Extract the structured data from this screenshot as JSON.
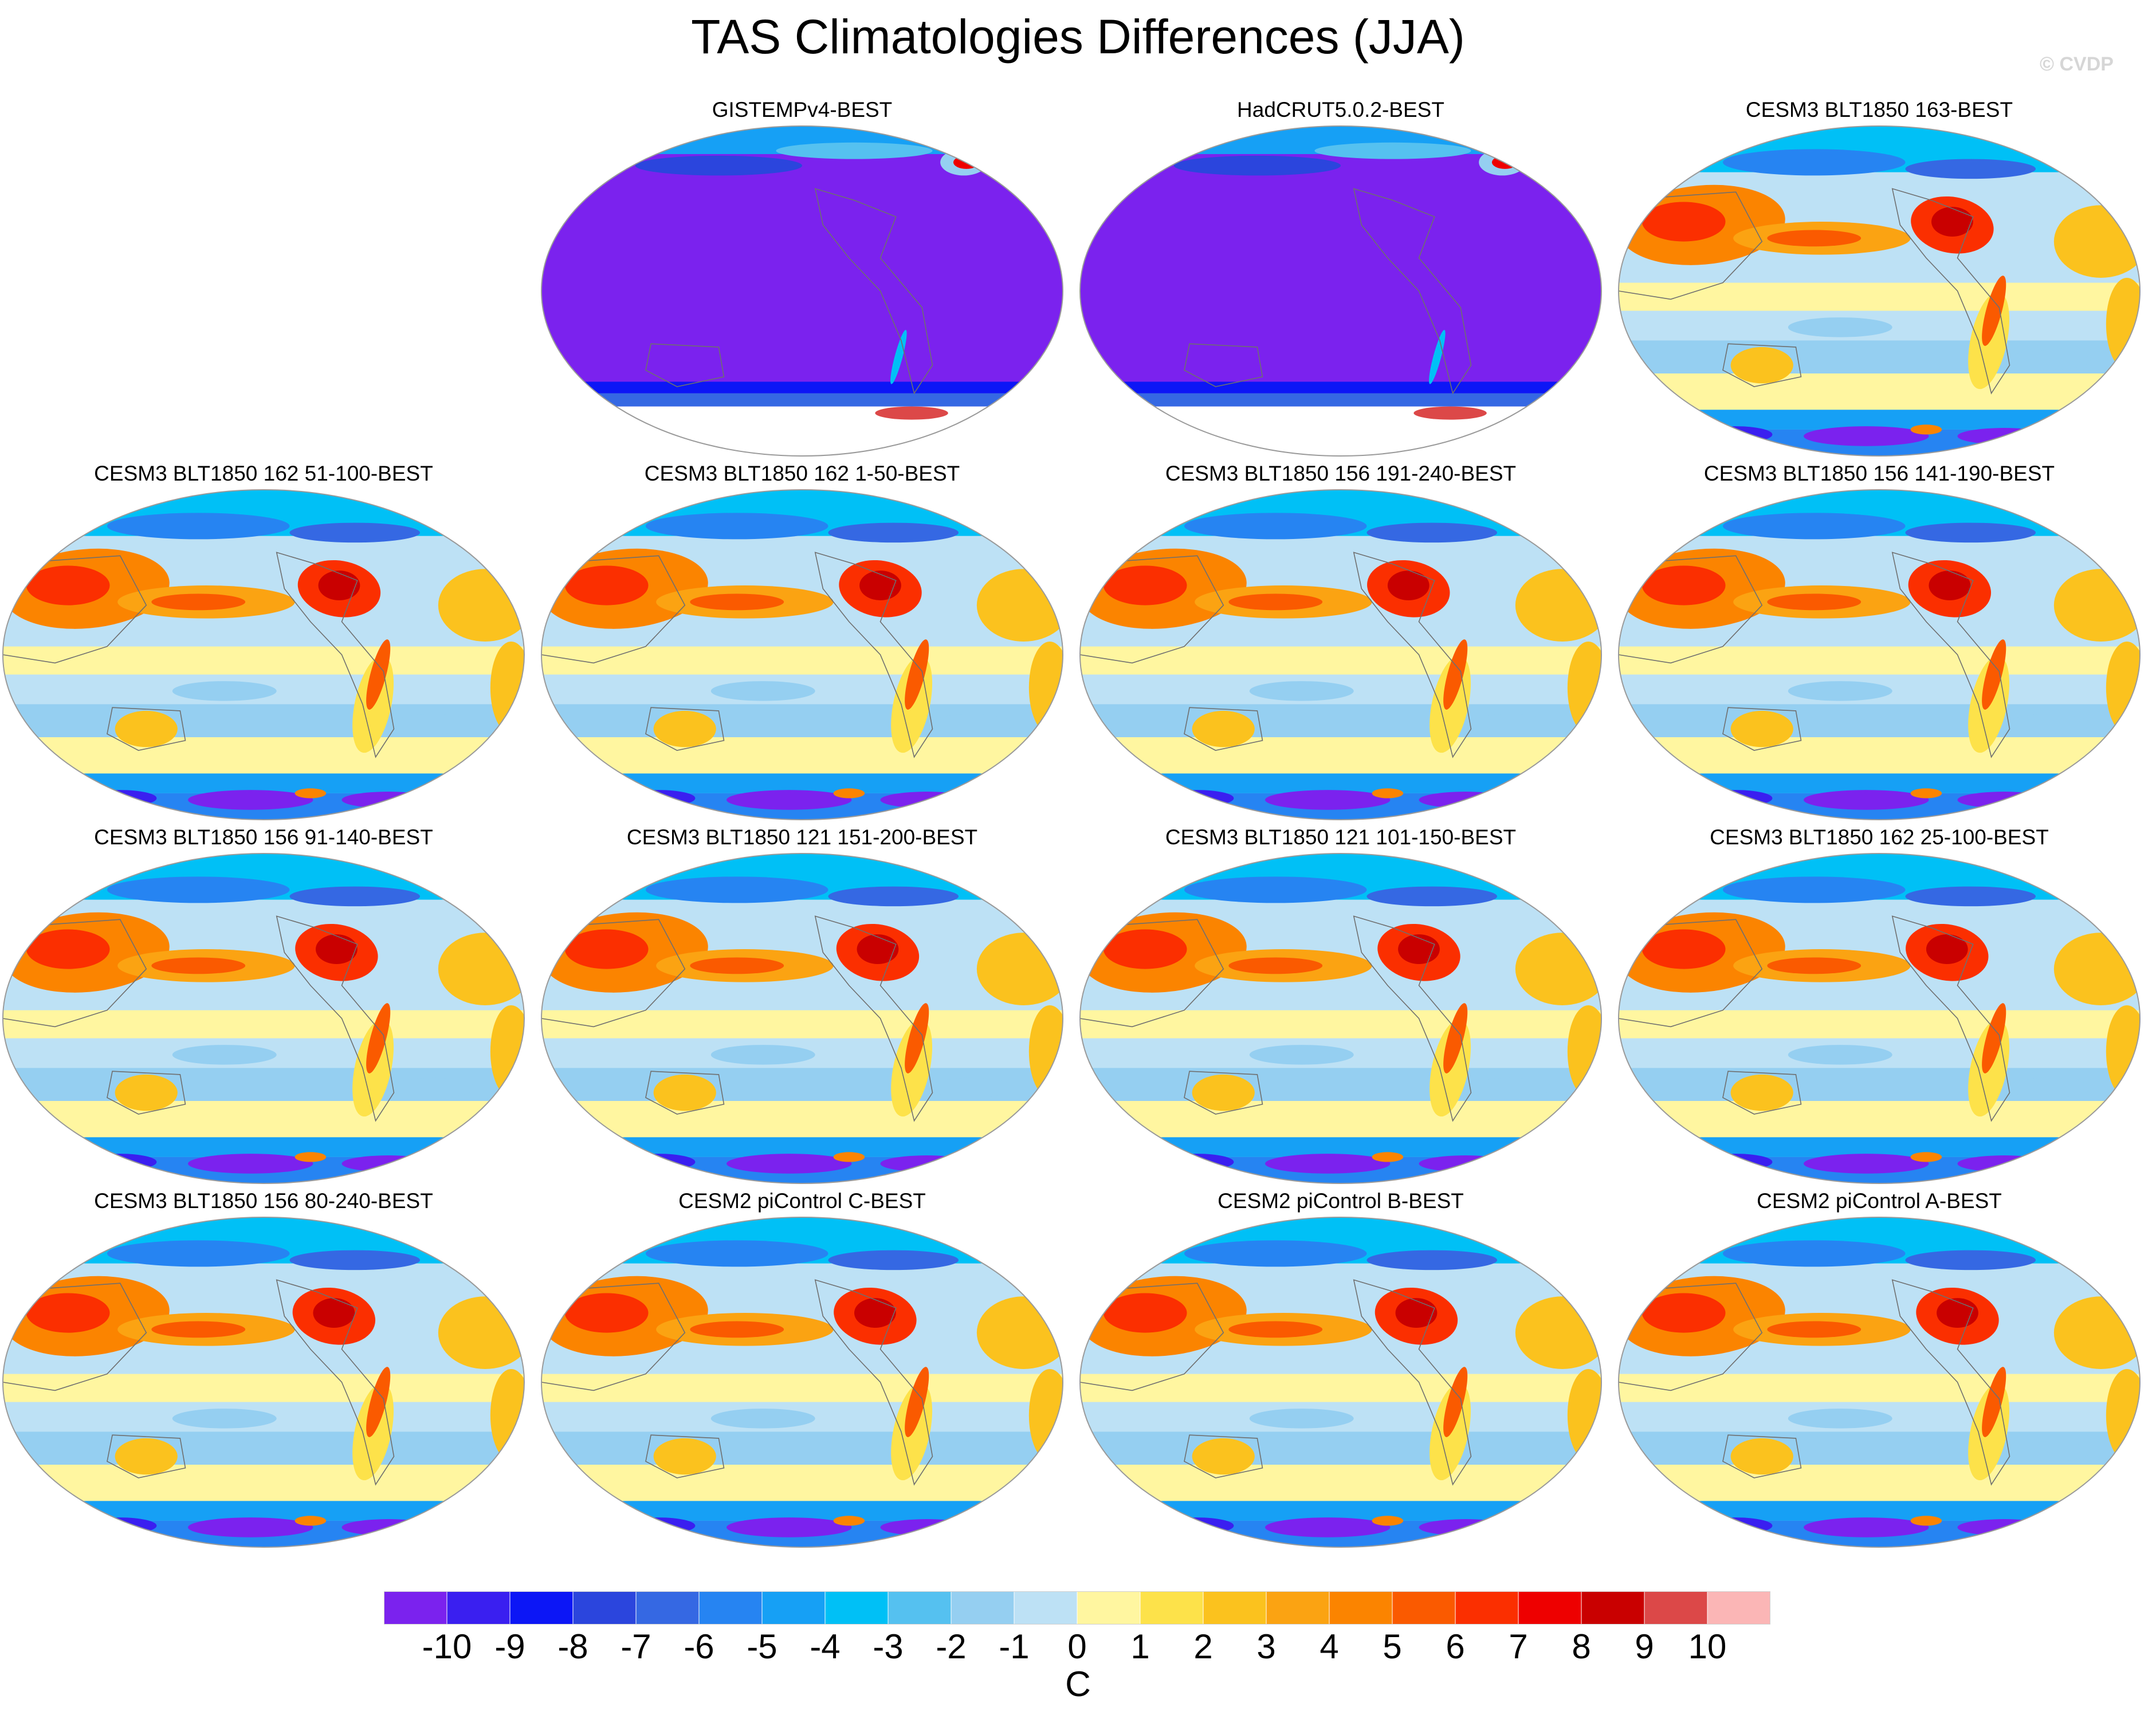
{
  "figure": {
    "title": "TAS Climatologies Differences (JJA)",
    "watermark": "© CVDP"
  },
  "panels": [
    {
      "title": "GISTEMPv4-BEST",
      "pattern": "obs"
    },
    {
      "title": "HadCRUT5.0.2-BEST",
      "pattern": "obs"
    },
    {
      "title": "CESM3 BLT1850 163-BEST",
      "pattern": "model"
    },
    {
      "title": "CESM3 BLT1850 162 51-100-BEST",
      "pattern": "model"
    },
    {
      "title": "CESM3 BLT1850 162 1-50-BEST",
      "pattern": "model"
    },
    {
      "title": "CESM3 BLT1850 156 191-240-BEST",
      "pattern": "model"
    },
    {
      "title": "CESM3 BLT1850 156 141-190-BEST",
      "pattern": "model"
    },
    {
      "title": "CESM3 BLT1850 156 91-140-BEST",
      "pattern": "model"
    },
    {
      "title": "CESM3 BLT1850 121 151-200-BEST",
      "pattern": "model"
    },
    {
      "title": "CESM3 BLT1850 121 101-150-BEST",
      "pattern": "model"
    },
    {
      "title": "CESM3 BLT1850 162 25-100-BEST",
      "pattern": "model"
    },
    {
      "title": "CESM3 BLT1850 156 80-240-BEST",
      "pattern": "model"
    },
    {
      "title": "CESM2 piControl C-BEST",
      "pattern": "model"
    },
    {
      "title": "CESM2 piControl B-BEST",
      "pattern": "model"
    },
    {
      "title": "CESM2 piControl A-BEST",
      "pattern": "model"
    }
  ],
  "colorbar": {
    "units": "C",
    "tick_labels": [
      "-10",
      "-9",
      "-8",
      "-7",
      "-6",
      "-5",
      "-4",
      "-3",
      "-2",
      "-1",
      "0",
      "1",
      "2",
      "3",
      "4",
      "5",
      "6",
      "7",
      "8",
      "9",
      "10"
    ],
    "colors": [
      "#7b22ee",
      "#3a1ff0",
      "#0c16f6",
      "#2b45dd",
      "#3568e3",
      "#2684f2",
      "#16a0f5",
      "#00c0f6",
      "#55c1f0",
      "#95cff1",
      "#bde1f5",
      "#fff6a0",
      "#fde24a",
      "#fbc21e",
      "#fba312",
      "#fb8400",
      "#fa5a00",
      "#fb2f00",
      "#ee0000",
      "#c90000",
      "#dc4848",
      "#fbb6b6"
    ]
  }
}
